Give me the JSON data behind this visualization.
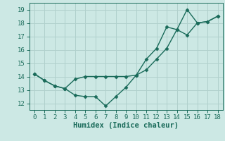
{
  "x": [
    0,
    1,
    2,
    3,
    4,
    5,
    6,
    7,
    8,
    9,
    10,
    11,
    12,
    13,
    14,
    15,
    16,
    17,
    18
  ],
  "line1": [
    14.2,
    13.7,
    13.3,
    13.1,
    13.8,
    14.0,
    14.0,
    14.0,
    14.0,
    14.0,
    14.1,
    15.3,
    16.1,
    17.7,
    17.5,
    17.1,
    18.0,
    18.1,
    18.5
  ],
  "line2": [
    14.2,
    13.7,
    13.3,
    13.1,
    12.6,
    12.5,
    12.5,
    11.8,
    12.5,
    13.2,
    14.1,
    14.5,
    15.3,
    16.1,
    17.5,
    19.0,
    18.0,
    18.1,
    18.5
  ],
  "line_color": "#1a6b5a",
  "bg_color": "#cce8e4",
  "grid_color": "#b0d0cc",
  "xlabel": "Humidex (Indice chaleur)",
  "xlim": [
    -0.5,
    18.5
  ],
  "ylim": [
    11.5,
    19.5
  ],
  "xticks": [
    0,
    1,
    2,
    3,
    4,
    5,
    6,
    7,
    8,
    9,
    10,
    11,
    12,
    13,
    14,
    15,
    16,
    17,
    18
  ],
  "yticks": [
    12,
    13,
    14,
    15,
    16,
    17,
    18,
    19
  ],
  "marker": "D",
  "marker_size": 2.5,
  "line_width": 1.0,
  "tick_fontsize": 6.5,
  "xlabel_fontsize": 7.5
}
